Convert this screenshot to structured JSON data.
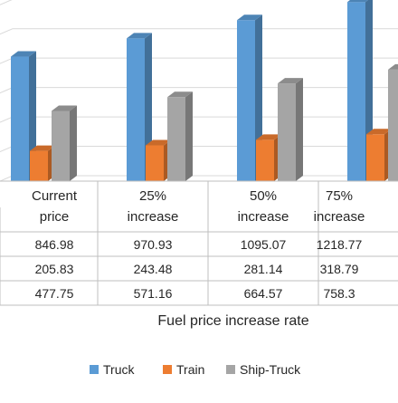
{
  "chart_data": {
    "type": "bar",
    "style": "3d-clustered-column-with-data-table",
    "categories": [
      "Current price",
      "25% increase",
      "50% increase",
      "75% increase"
    ],
    "category_label_lines": [
      [
        "Current",
        "price"
      ],
      [
        "25%",
        "increase"
      ],
      [
        "50%",
        "increase"
      ],
      [
        "75%",
        "increase"
      ]
    ],
    "series": [
      {
        "name": "Truck",
        "values": [
          846.98,
          970.93,
          1095.07,
          1218.77
        ],
        "display": [
          "846.98",
          "970.93",
          "1095.07",
          "1218.77"
        ],
        "color": "#5b9bd5"
      },
      {
        "name": "Train",
        "values": [
          205.83,
          243.48,
          281.14,
          318.79
        ],
        "display": [
          "205.83",
          "243.48",
          "281.14",
          "318.79"
        ],
        "color": "#ed7d31"
      },
      {
        "name": "Ship-Truck",
        "values": [
          477.75,
          571.16,
          664.57,
          758.3
        ],
        "display": [
          "477.75",
          "571.16",
          "664.57",
          "758.3"
        ],
        "color": "#a5a5a5"
      }
    ],
    "xlabel": "Fuel price increase rate",
    "ylabel": "",
    "ylim": [
      0,
      1400
    ],
    "grid": true,
    "legend_position": "bottom"
  }
}
